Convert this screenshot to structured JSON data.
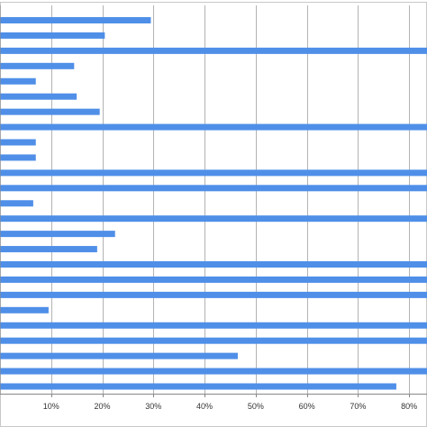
{
  "chart_data": {
    "type": "bar",
    "orientation": "horizontal",
    "title": "",
    "xlabel": "",
    "ylabel": "",
    "xlim": [
      0,
      83.5
    ],
    "x_ticks": [
      10,
      20,
      30,
      40,
      50,
      60,
      70,
      80
    ],
    "x_tick_labels": [
      "10%",
      "20%",
      "30%",
      "40%",
      "50%",
      "60%",
      "70%",
      "80%"
    ],
    "grid": "vertical",
    "legend": "none",
    "series": [
      {
        "color": "#4f8fe8",
        "values": [
          29.5,
          20.5,
          85,
          14.5,
          7,
          15,
          19.5,
          85,
          7,
          7,
          85,
          85,
          6.5,
          85,
          22.5,
          19,
          85,
          85,
          85,
          9.5,
          85,
          85,
          46.5,
          85,
          77.5
        ]
      }
    ],
    "colors": {
      "bar": "#4f8fe8",
      "grid": "#b3b3b3",
      "axis": "#888888",
      "frame": "#c8c8c8",
      "tick_text": "#333333"
    }
  }
}
